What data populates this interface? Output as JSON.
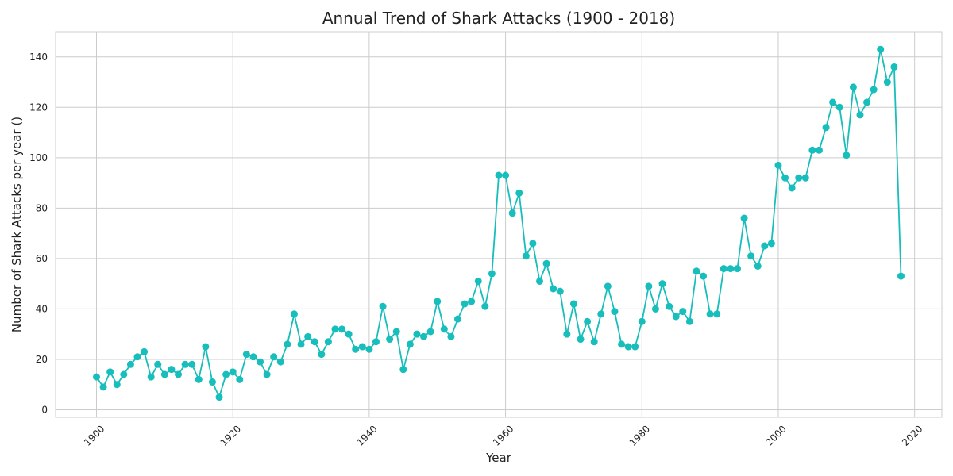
{
  "chart_data": {
    "type": "line",
    "title": "Annual Trend of Shark Attacks (1900 - 2018)",
    "xlabel": "Year",
    "ylabel": "Number of Shark Attacks per year ()",
    "xlim": [
      1894,
      2024
    ],
    "ylim": [
      -3,
      150
    ],
    "xticks": [
      1900,
      1920,
      1940,
      1960,
      1980,
      2000,
      2020
    ],
    "yticks": [
      0,
      20,
      40,
      60,
      80,
      100,
      120,
      140
    ],
    "grid": true,
    "legend": "none",
    "line_color": "#17bebb",
    "marker": "circle",
    "series": [
      {
        "x": [
          1900,
          1901,
          1902,
          1903,
          1904,
          1905,
          1906,
          1907,
          1908,
          1909,
          1910,
          1911,
          1912,
          1913,
          1914,
          1915,
          1916,
          1917,
          1918,
          1919,
          1920,
          1921,
          1922,
          1923,
          1924,
          1925,
          1926,
          1927,
          1928,
          1929,
          1930,
          1931,
          1932,
          1933,
          1934,
          1935,
          1936,
          1937,
          1938,
          1939,
          1940,
          1941,
          1942,
          1943,
          1944,
          1945,
          1946,
          1947,
          1948,
          1949,
          1950,
          1951,
          1952,
          1953,
          1954,
          1955,
          1956,
          1957,
          1958,
          1959,
          1960,
          1961,
          1962,
          1963,
          1964,
          1965,
          1966,
          1967,
          1968,
          1969,
          1970,
          1971,
          1972,
          1973,
          1974,
          1975,
          1976,
          1977,
          1978,
          1979,
          1980,
          1981,
          1982,
          1983,
          1984,
          1985,
          1986,
          1987,
          1988,
          1989,
          1990,
          1991,
          1992,
          1993,
          1994,
          1995,
          1996,
          1997,
          1998,
          1999,
          2000,
          2001,
          2002,
          2003,
          2004,
          2005,
          2006,
          2007,
          2008,
          2009,
          2010,
          2011,
          2012,
          2013,
          2014,
          2015,
          2016,
          2017,
          2018
        ],
        "values": [
          13,
          9,
          15,
          10,
          14,
          18,
          21,
          23,
          13,
          18,
          14,
          16,
          14,
          18,
          18,
          12,
          25,
          11,
          5,
          14,
          15,
          12,
          22,
          21,
          19,
          14,
          21,
          19,
          26,
          38,
          26,
          29,
          27,
          22,
          27,
          32,
          32,
          30,
          24,
          25,
          24,
          27,
          41,
          28,
          31,
          16,
          26,
          30,
          29,
          31,
          43,
          32,
          29,
          36,
          42,
          43,
          51,
          41,
          54,
          93,
          93,
          78,
          86,
          61,
          66,
          51,
          58,
          48,
          47,
          30,
          42,
          28,
          35,
          27,
          38,
          49,
          39,
          26,
          25,
          25,
          35,
          49,
          40,
          50,
          41,
          37,
          39,
          35,
          55,
          53,
          38,
          38,
          56,
          56,
          56,
          76,
          61,
          57,
          65,
          66,
          97,
          92,
          88,
          92,
          92,
          103,
          103,
          112,
          122,
          120,
          101,
          128,
          117,
          122,
          127,
          143,
          130,
          136,
          53
        ]
      }
    ]
  }
}
